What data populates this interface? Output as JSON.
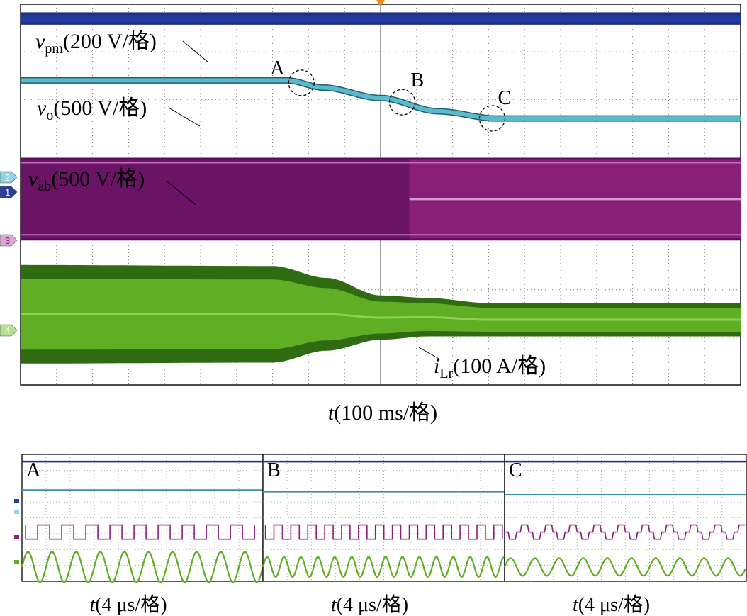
{
  "chart_data": {
    "type": "line",
    "title": "",
    "main_plot": {
      "xlabel_italic": "t",
      "xlabel": "(100 ms/格)",
      "x_divisions": 10,
      "y_divisions": 8,
      "x_unit": "div",
      "transition_points": [
        {
          "label": "A",
          "t_div": 7.8
        },
        {
          "label": "B",
          "t_div": 10.6
        },
        {
          "label": "C",
          "t_div": 13.1
        }
      ],
      "series": [
        {
          "name": "vpm",
          "sym": "v",
          "sub": "pm",
          "scale": "(200 V/格)",
          "channel": "1",
          "color": "#1e2f86",
          "x": [
            0,
            10,
            20
          ],
          "y_div": [
            7.7,
            7.7,
            7.7
          ],
          "ripple_div": 0.13
        },
        {
          "name": "vo",
          "sym": "v",
          "sub": "o",
          "scale": "(500 V/格)",
          "channel": "2",
          "color": "#5bb9cc",
          "x": [
            0,
            7.4,
            8.4,
            10.0,
            11.6,
            13.2,
            20
          ],
          "y_div": [
            6.4,
            6.4,
            6.25,
            6.03,
            5.75,
            5.6,
            5.6
          ],
          "ripple_div": 0.06
        },
        {
          "name": "vab",
          "sym": "v",
          "sub": "ab",
          "scale": "(500 V/格)",
          "channel": "3",
          "color": "#8a1f78",
          "x": [
            0,
            10.8,
            20
          ],
          "upper_div": [
            4.73,
            4.73,
            4.73
          ],
          "lower_div": [
            3.08,
            3.08,
            3.08
          ]
        },
        {
          "name": "iLr",
          "sym": "i",
          "sub": "Lr",
          "scale": "(100 A/格)",
          "channel": "4",
          "color": "#5fae24",
          "x": [
            0,
            7.0,
            8.5,
            10.0,
            11.3,
            13.0,
            20
          ],
          "upper_div": [
            2.52,
            2.5,
            2.25,
            1.88,
            1.83,
            1.72,
            1.72
          ],
          "lower_div": [
            0.45,
            0.47,
            0.72,
            0.95,
            1.02,
            1.02,
            1.02
          ]
        }
      ]
    },
    "zoom_plots": [
      {
        "label": "A",
        "xlabel_italic": "t",
        "xlabel": "(4 μs/格)",
        "period_div": 1.0,
        "ilr_amplitude_div": 0.12,
        "vab_levels": 2,
        "vo_div": 5.75
      },
      {
        "label": "B",
        "xlabel_italic": "t",
        "xlabel": "(4 μs/格)",
        "period_div": 0.7,
        "ilr_amplitude_div": 0.08,
        "vab_levels": 2,
        "vo_div": 5.65
      },
      {
        "label": "C",
        "xlabel_italic": "t",
        "xlabel": "(4 μs/格)",
        "period_div": 1.0,
        "ilr_amplitude_div": 0.07,
        "vab_levels": 3,
        "vo_div": 5.45
      }
    ]
  }
}
